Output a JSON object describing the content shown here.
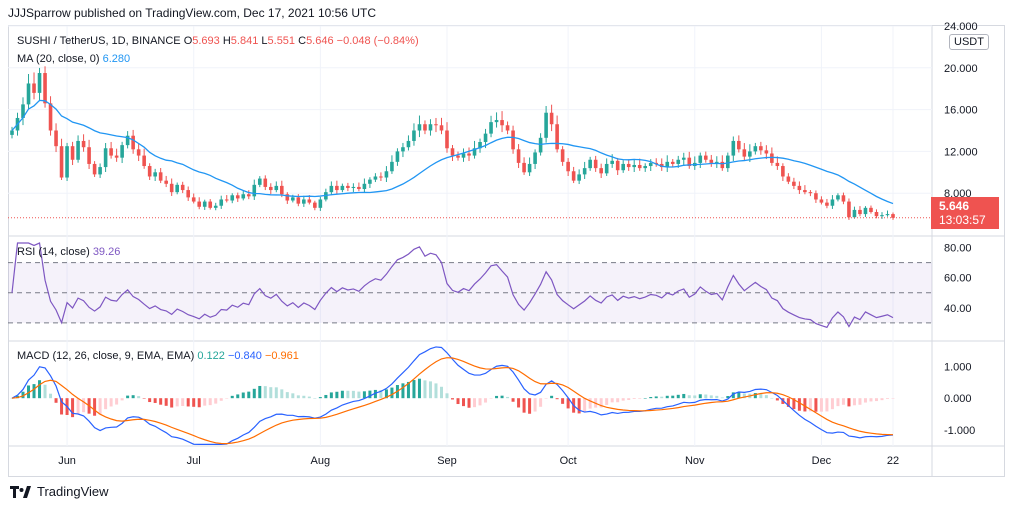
{
  "header": {
    "published": "JJJSparrow published on TradingView.com, Dec 17, 2021 10:56 UTC"
  },
  "footer": {
    "brand": "TradingView"
  },
  "main_legend": {
    "symbol": "SUSHI / TetherUS, 1D, BINANCE",
    "o_label": "O",
    "o": "5.693",
    "h_label": "H",
    "h": "5.841",
    "l_label": "L",
    "l": "5.551",
    "c_label": "C",
    "c": "5.646",
    "chg": "−0.048 (−0.84%)"
  },
  "ma_legend": {
    "label": "MA (20, close, 0)",
    "value": "6.280"
  },
  "rsi_legend": {
    "label": "RSI (14, close)",
    "value": "39.26"
  },
  "macd_legend": {
    "label": "MACD (12, 26, close, 9, EMA, EMA)",
    "hist": "0.122",
    "macd": "−0.840",
    "signal": "−0.961"
  },
  "currency": "USDT",
  "last_price": {
    "value": "5.646",
    "countdown": "13:03:57"
  },
  "colors": {
    "up": "#26a69a",
    "down": "#ef5350",
    "ma": "#2196f3",
    "rsi": "#7e57c2",
    "macd": "#2962ff",
    "signal": "#ff6d00"
  },
  "chart_data": [
    {
      "type": "candlestick",
      "panel": "price",
      "x_ticks": [
        "Jun",
        "Jul",
        "Aug",
        "Sep",
        "Oct",
        "Nov",
        "Dec",
        "22"
      ],
      "y_ticks": [
        "20.000",
        "16.000",
        "12.000",
        "8.000",
        "24.000"
      ],
      "ylim": [
        4.0,
        24.0
      ],
      "close": [
        14.0,
        15.2,
        16.5,
        18.5,
        17.6,
        19.5,
        16.6,
        14.0,
        12.5,
        9.5,
        12.5,
        11.2,
        13.0,
        12.4,
        10.8,
        9.8,
        10.5,
        12.3,
        11.6,
        11.4,
        12.6,
        13.5,
        12.2,
        11.6,
        10.6,
        9.6,
        10.0,
        9.2,
        8.9,
        8.1,
        8.8,
        8.3,
        7.6,
        7.2,
        6.7,
        7.2,
        6.6,
        6.8,
        7.4,
        7.3,
        7.8,
        7.5,
        7.9,
        7.7,
        8.8,
        9.4,
        8.6,
        8.3,
        8.7,
        7.9,
        7.3,
        7.6,
        7.0,
        7.4,
        7.1,
        6.6,
        7.4,
        8.1,
        8.7,
        8.3,
        8.7,
        8.5,
        8.6,
        8.4,
        8.9,
        9.3,
        9.6,
        9.5,
        10.1,
        11.0,
        12.0,
        12.4,
        13.0,
        14.0,
        14.6,
        14.0,
        14.6,
        14.5,
        14.0,
        12.3,
        11.6,
        11.4,
        11.8,
        11.6,
        12.3,
        12.9,
        13.7,
        14.8,
        15.0,
        14.5,
        14.0,
        12.2,
        10.9,
        10.0,
        10.8,
        11.9,
        13.3,
        15.7,
        14.6,
        12.2,
        11.0,
        10.1,
        9.2,
        9.8,
        10.4,
        11.2,
        10.4,
        9.9,
        10.8,
        11.1,
        10.2,
        10.8,
        10.5,
        10.7,
        10.4,
        10.6,
        10.9,
        10.8,
        10.5,
        11.0,
        10.8,
        11.2,
        11.4,
        10.6,
        10.9,
        11.6,
        11.2,
        10.9,
        11.0,
        10.4,
        11.6,
        13.0,
        12.2,
        11.5,
        12.0,
        12.5,
        12.1,
        11.8,
        10.9,
        10.6,
        9.6,
        9.1,
        8.7,
        8.3,
        8.1,
        8.0,
        7.4,
        7.1,
        6.8,
        7.4,
        7.8,
        7.2,
        5.7,
        6.4,
        6.0,
        6.6,
        6.2,
        5.8,
        5.9,
        6.0,
        5.646
      ],
      "ma_last": 6.28
    },
    {
      "type": "line",
      "panel": "rsi",
      "y_ticks": [
        "80.00",
        "60.00",
        "40.00"
      ],
      "ylim": [
        20,
        85
      ],
      "bands": {
        "upper": 70,
        "middle": 50,
        "lower": 30
      }
    },
    {
      "type": "line+bar",
      "panel": "macd",
      "y_ticks": [
        "1.000",
        "0.000",
        "-1.000"
      ],
      "ylim": [
        -1.5,
        1.7
      ]
    }
  ]
}
